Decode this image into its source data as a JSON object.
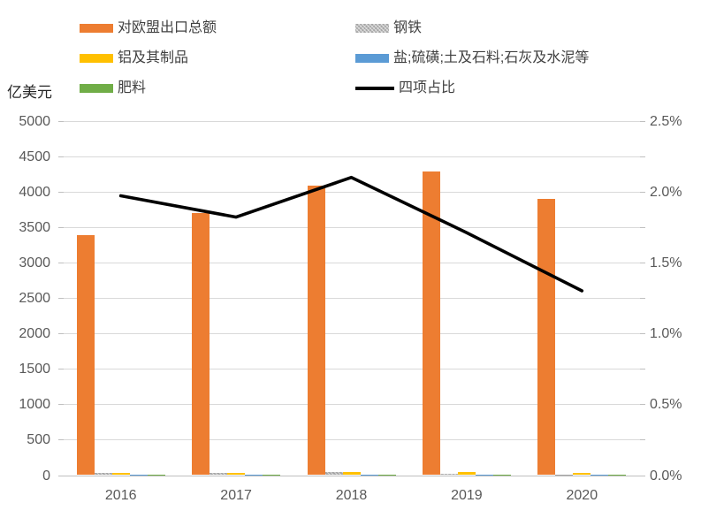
{
  "chart_data": {
    "type": "bar+line combo",
    "categories": [
      "2016",
      "2017",
      "2018",
      "2019",
      "2020"
    ],
    "bar_series": [
      {
        "key": "eu-exports-total",
        "name": "对欧盟出口总额",
        "color": "#ED7D31",
        "pattern": false,
        "values": [
          3390,
          3700,
          4080,
          4280,
          3900
        ]
      },
      {
        "key": "steel",
        "name": "钢铁",
        "color": "#A6A6A6",
        "pattern": true,
        "values": [
          35,
          25,
          40,
          22,
          12
        ]
      },
      {
        "key": "aluminum",
        "name": "铝及其制品",
        "color": "#FFC000",
        "pattern": false,
        "values": [
          25,
          36,
          42,
          43,
          32
        ]
      },
      {
        "key": "salt-sulphur-earth-stone-lime-cement",
        "name": "盐;硫磺;土及石料;石灰及水泥等",
        "color": "#5B9BD5",
        "pattern": false,
        "values": [
          5,
          5,
          5,
          6,
          5
        ]
      },
      {
        "key": "fertilizer",
        "name": "肥料",
        "color": "#70AD47",
        "pattern": false,
        "values": [
          1,
          1,
          1,
          2,
          2
        ]
      }
    ],
    "line_series": {
      "key": "four-items-share",
      "name": "四项占比",
      "color": "#000000",
      "values_pct": [
        1.97,
        1.82,
        2.1,
        1.71,
        1.3
      ]
    },
    "left_axis": {
      "title": "亿美元",
      "min": 0,
      "max": 5000,
      "step": 500,
      "tick_labels": [
        "0",
        "500",
        "1000",
        "1500",
        "2000",
        "2500",
        "3000",
        "3500",
        "4000",
        "4500",
        "5000"
      ]
    },
    "right_axis": {
      "min": 0,
      "max": 2.5,
      "step": 0.5,
      "tick_labels": [
        "0.0%",
        "0.5%",
        "1.0%",
        "1.5%",
        "2.0%",
        "2.5%"
      ]
    },
    "legend_position": "top, two columns",
    "grid": "horizontal gridlines on"
  }
}
